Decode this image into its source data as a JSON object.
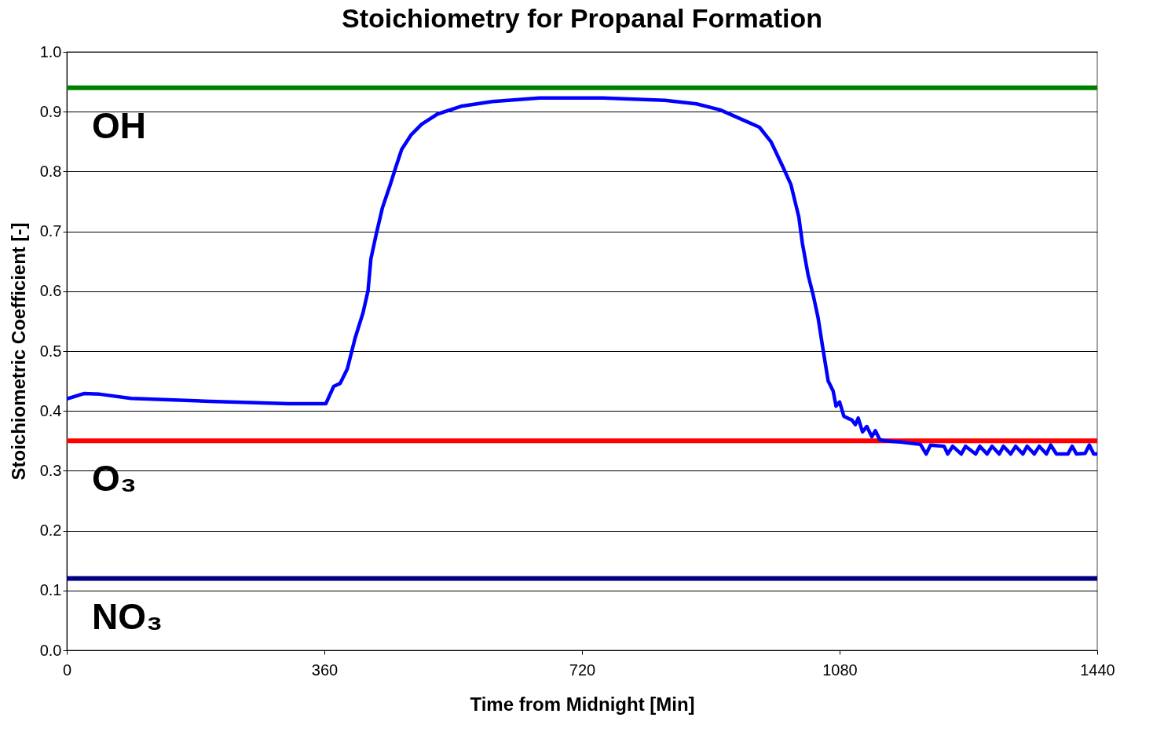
{
  "chart_data": {
    "type": "line",
    "title": "Stoichiometry for Propanal Formation",
    "xlabel": "Time from Midnight [Min]",
    "ylabel": "Stoichiometric Coefficient [-]",
    "xlim": [
      0,
      1440
    ],
    "xticks": [
      0,
      360,
      720,
      1080,
      1440
    ],
    "ylim": [
      0,
      1
    ],
    "yticks": [
      {
        "value": 0,
        "label": "0.0"
      },
      0.1,
      0.2,
      0.3,
      0.4,
      0.5,
      0.6,
      0.7,
      0.8,
      0.9,
      {
        "value": 1,
        "label": "1.0"
      }
    ],
    "grid": "y",
    "series": [
      {
        "name": "OH",
        "color": "#008000",
        "x": [
          0,
          1440
        ],
        "values": [
          0.94,
          0.94
        ]
      },
      {
        "name": "O₃",
        "color": "#ff0000",
        "x": [
          0,
          1440
        ],
        "values": [
          0.35,
          0.35
        ]
      },
      {
        "name": "NO₃",
        "color": "#000080",
        "x": [
          0,
          1440
        ],
        "values": [
          0.12,
          0.12
        ]
      },
      {
        "color": "#0000ff",
        "x": [
          0,
          24,
          46,
          90,
          200,
          310,
          362,
          373,
          382,
          392,
          403,
          414,
          421,
          425,
          432,
          441,
          452,
          460,
          468,
          481,
          496,
          518,
          551,
          595,
          661,
          749,
          836,
          880,
          913,
          951,
          968,
          984,
          1001,
          1012,
          1023,
          1028,
          1036,
          1043,
          1050,
          1056,
          1064,
          1071,
          1075,
          1080,
          1086,
          1093,
          1097,
          1102,
          1106,
          1112,
          1118,
          1125,
          1130,
          1136,
          1143,
          1165,
          1193,
          1201,
          1207,
          1226,
          1231,
          1238,
          1250,
          1256,
          1270,
          1276,
          1286,
          1293,
          1303,
          1309,
          1319,
          1326,
          1336,
          1342,
          1352,
          1359,
          1369,
          1375,
          1383,
          1390,
          1399,
          1405,
          1411,
          1423,
          1429,
          1435,
          1440
        ],
        "values": [
          0.42,
          0.429,
          0.428,
          0.421,
          0.416,
          0.412,
          0.412,
          0.441,
          0.446,
          0.47,
          0.522,
          0.564,
          0.601,
          0.654,
          0.693,
          0.739,
          0.778,
          0.808,
          0.837,
          0.861,
          0.879,
          0.896,
          0.909,
          0.917,
          0.923,
          0.923,
          0.919,
          0.913,
          0.903,
          0.883,
          0.874,
          0.85,
          0.807,
          0.778,
          0.724,
          0.68,
          0.627,
          0.594,
          0.555,
          0.509,
          0.45,
          0.433,
          0.408,
          0.415,
          0.391,
          0.387,
          0.385,
          0.377,
          0.388,
          0.365,
          0.374,
          0.357,
          0.367,
          0.352,
          0.35,
          0.348,
          0.344,
          0.328,
          0.343,
          0.341,
          0.328,
          0.341,
          0.328,
          0.341,
          0.328,
          0.341,
          0.328,
          0.341,
          0.328,
          0.341,
          0.328,
          0.341,
          0.328,
          0.341,
          0.328,
          0.341,
          0.328,
          0.343,
          0.328,
          0.328,
          0.328,
          0.341,
          0.328,
          0.329,
          0.343,
          0.328,
          0.328
        ]
      }
    ]
  }
}
